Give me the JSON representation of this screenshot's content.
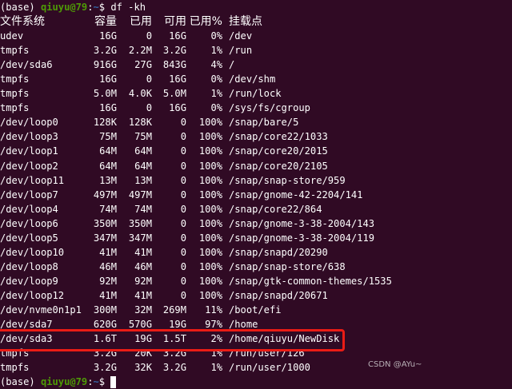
{
  "prompt": {
    "env": "(base)",
    "user_host": "qiuyu@79",
    "sep": ":",
    "path": "~",
    "symbol": "$",
    "command": " df -kh"
  },
  "header": {
    "fs": "文件系统",
    "size": "容量",
    "used": "已用",
    "avail": "可用",
    "pct": "已用%",
    "mount": "挂载点"
  },
  "rows": [
    [
      "udev",
      "16G",
      "0",
      "16G",
      "0%",
      "/dev"
    ],
    [
      "tmpfs",
      "3.2G",
      "2.2M",
      "3.2G",
      "1%",
      "/run"
    ],
    [
      "/dev/sda6",
      "916G",
      "27G",
      "843G",
      "4%",
      "/"
    ],
    [
      "tmpfs",
      "16G",
      "0",
      "16G",
      "0%",
      "/dev/shm"
    ],
    [
      "tmpfs",
      "5.0M",
      "4.0K",
      "5.0M",
      "1%",
      "/run/lock"
    ],
    [
      "tmpfs",
      "16G",
      "0",
      "16G",
      "0%",
      "/sys/fs/cgroup"
    ],
    [
      "/dev/loop0",
      "128K",
      "128K",
      "0",
      "100%",
      "/snap/bare/5"
    ],
    [
      "/dev/loop3",
      "75M",
      "75M",
      "0",
      "100%",
      "/snap/core22/1033"
    ],
    [
      "/dev/loop1",
      "64M",
      "64M",
      "0",
      "100%",
      "/snap/core20/2015"
    ],
    [
      "/dev/loop2",
      "64M",
      "64M",
      "0",
      "100%",
      "/snap/core20/2105"
    ],
    [
      "/dev/loop11",
      "13M",
      "13M",
      "0",
      "100%",
      "/snap/snap-store/959"
    ],
    [
      "/dev/loop7",
      "497M",
      "497M",
      "0",
      "100%",
      "/snap/gnome-42-2204/141"
    ],
    [
      "/dev/loop4",
      "74M",
      "74M",
      "0",
      "100%",
      "/snap/core22/864"
    ],
    [
      "/dev/loop6",
      "350M",
      "350M",
      "0",
      "100%",
      "/snap/gnome-3-38-2004/143"
    ],
    [
      "/dev/loop5",
      "347M",
      "347M",
      "0",
      "100%",
      "/snap/gnome-3-38-2004/119"
    ],
    [
      "/dev/loop10",
      "41M",
      "41M",
      "0",
      "100%",
      "/snap/snapd/20290"
    ],
    [
      "/dev/loop8",
      "46M",
      "46M",
      "0",
      "100%",
      "/snap/snap-store/638"
    ],
    [
      "/dev/loop9",
      "92M",
      "92M",
      "0",
      "100%",
      "/snap/gtk-common-themes/1535"
    ],
    [
      "/dev/loop12",
      "41M",
      "41M",
      "0",
      "100%",
      "/snap/snapd/20671"
    ],
    [
      "/dev/nvme0n1p1",
      "300M",
      "32M",
      "269M",
      "11%",
      "/boot/efi"
    ],
    [
      "/dev/sda7",
      "620G",
      "570G",
      "19G",
      "97%",
      "/home"
    ],
    [
      "/dev/sda3",
      "1.6T",
      "19G",
      "1.5T",
      "2%",
      "/home/qiuyu/NewDisk"
    ],
    [
      "tmpfs",
      "3.2G",
      "20K",
      "3.2G",
      "1%",
      "/run/user/126"
    ],
    [
      "tmpfs",
      "3.2G",
      "32K",
      "3.2G",
      "1%",
      "/run/user/1000"
    ]
  ],
  "highlight_row": "/dev/sda3",
  "watermark": "CSDN @AYu~",
  "colors": {
    "background": "#300a24",
    "user_host": "#4e9a06",
    "path": "#3465a4",
    "highlight": "#ea1c15"
  }
}
